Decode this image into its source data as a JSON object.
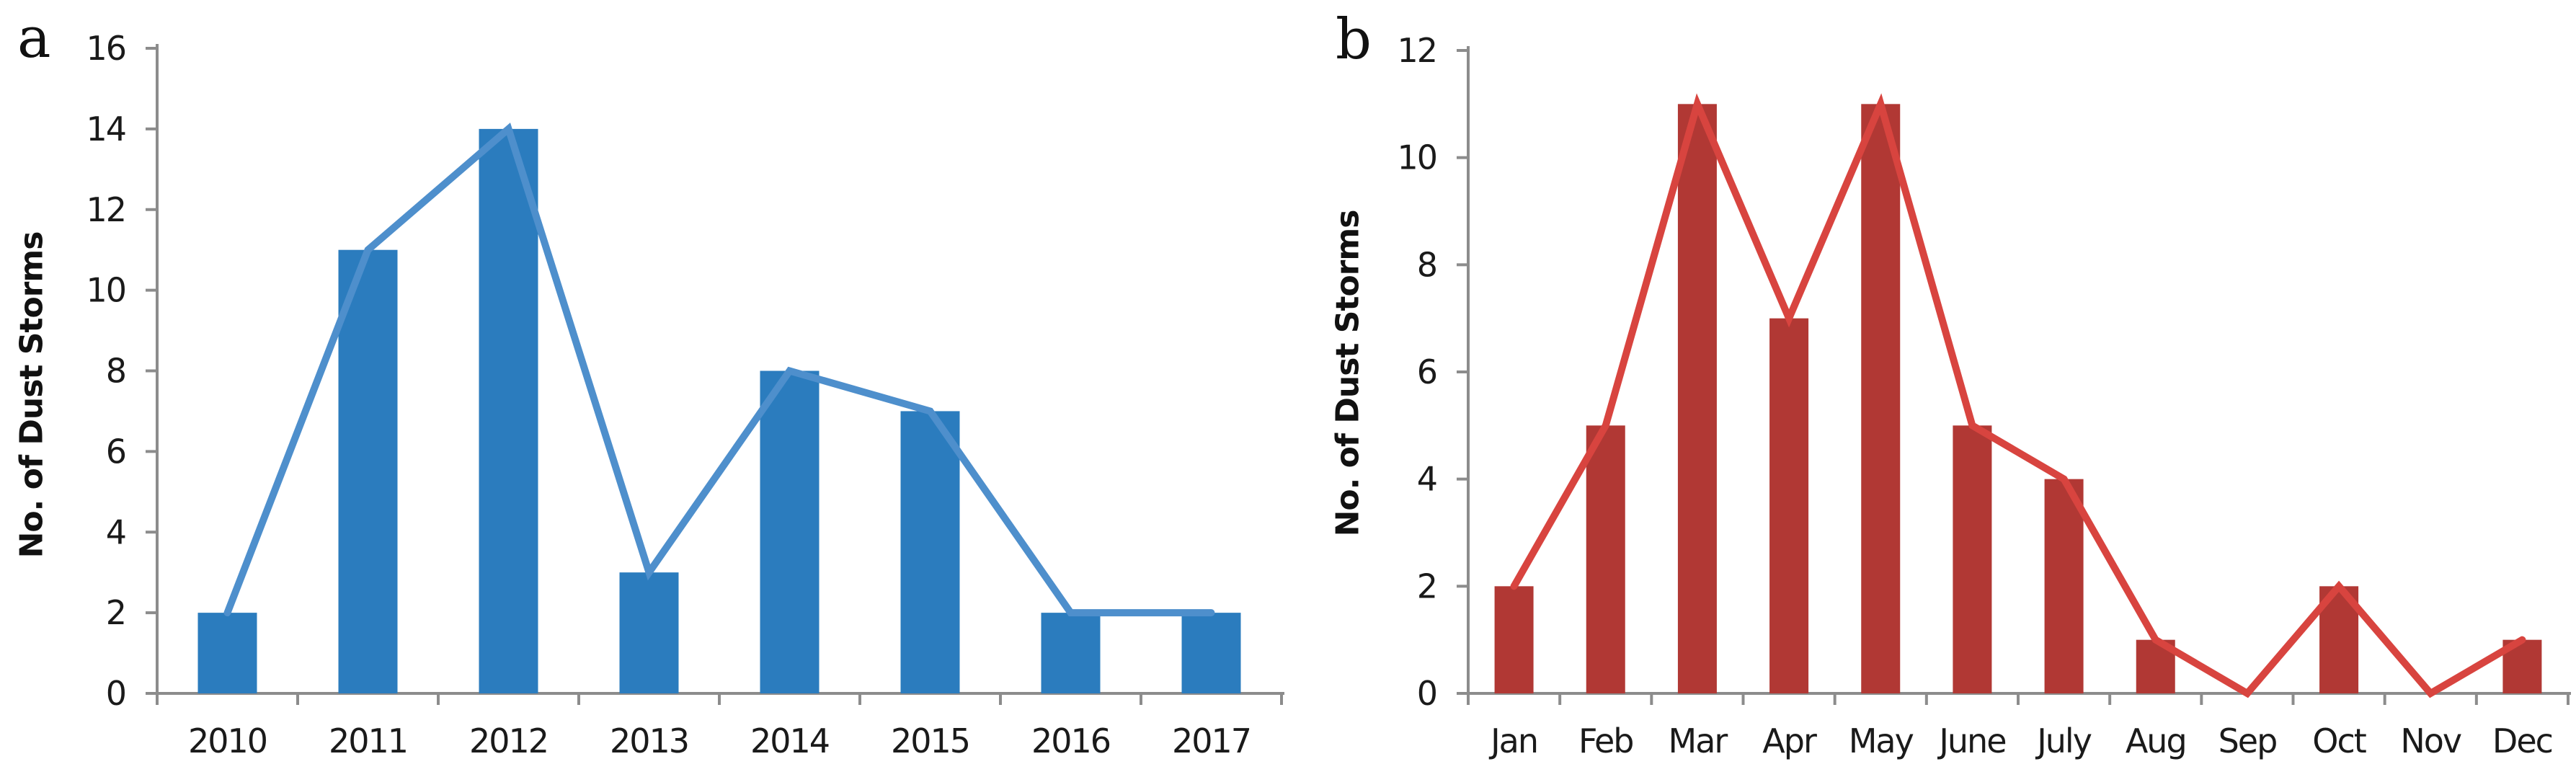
{
  "figure": {
    "background": "#ffffff"
  },
  "chart_data": [
    {
      "type": "bar",
      "panel_label": "a",
      "title": "",
      "xlabel": "",
      "ylabel": "No. of Dust Storms",
      "categories": [
        "2010",
        "2011",
        "2012",
        "2013",
        "2014",
        "2015",
        "2016",
        "2017"
      ],
      "series": [
        {
          "name": "dust-storms-bars",
          "type": "bar",
          "values": [
            2,
            11,
            14,
            3,
            8,
            7,
            2,
            2
          ]
        },
        {
          "name": "dust-storms-trend-line",
          "type": "line",
          "values": [
            2,
            11,
            14,
            3,
            8,
            7,
            2,
            2
          ]
        }
      ],
      "ylim": [
        0,
        16
      ],
      "yticks": [
        0,
        2,
        4,
        6,
        8,
        10,
        12,
        14,
        16
      ],
      "grid": false,
      "legend": "none",
      "bar_color": "#2B7CBE",
      "line_color": "#4E8FCC",
      "axis_color": "#8C8C8C",
      "tick_label_color": "#1A1A1A"
    },
    {
      "type": "bar",
      "panel_label": "b",
      "title": "",
      "xlabel": "",
      "ylabel": "No. of Dust Storms",
      "categories": [
        "Jan",
        "Feb",
        "Mar",
        "Apr",
        "May",
        "June",
        "July",
        "Aug",
        "Sep",
        "Oct",
        "Nov",
        "Dec"
      ],
      "series": [
        {
          "name": "dust-storms-bars",
          "type": "bar",
          "values": [
            2,
            5,
            11,
            7,
            11,
            5,
            4,
            1,
            0,
            2,
            0,
            1
          ]
        },
        {
          "name": "dust-storms-trend-line",
          "type": "line",
          "values": [
            2,
            5,
            11,
            7,
            11,
            5,
            4,
            1,
            0,
            2,
            0,
            1
          ]
        }
      ],
      "ylim": [
        0,
        12
      ],
      "yticks": [
        0,
        2,
        4,
        6,
        8,
        10,
        12
      ],
      "grid": false,
      "legend": "none",
      "bar_color": "#B13834",
      "line_color": "#D8443F",
      "axis_color": "#8C8C8C",
      "tick_label_color": "#1A1A1A"
    }
  ]
}
